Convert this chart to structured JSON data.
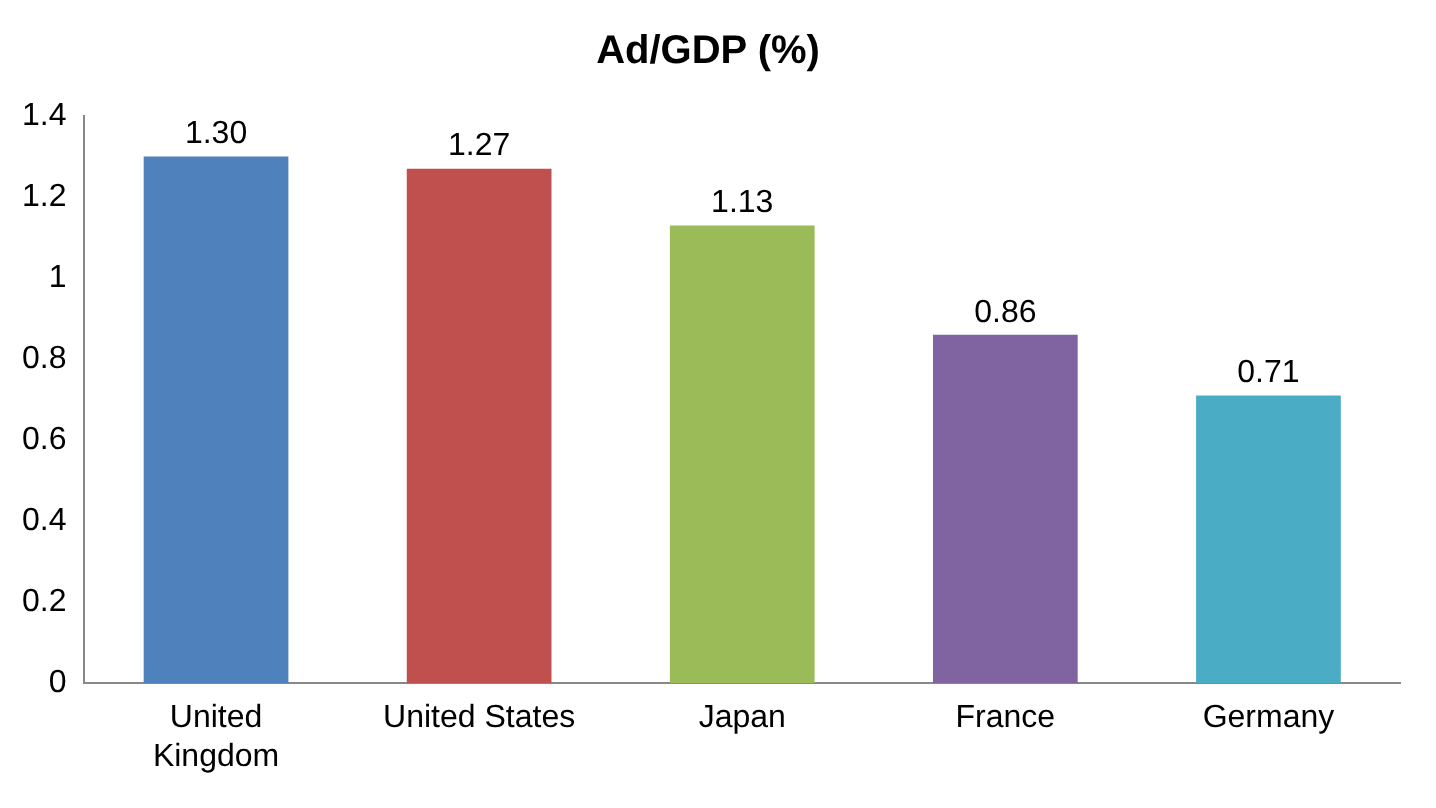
{
  "chart_data": {
    "type": "bar",
    "title": "Ad/GDP (%)",
    "categories": [
      "United Kingdom",
      "United States",
      "Japan",
      "France",
      "Germany"
    ],
    "values": [
      1.3,
      1.27,
      1.13,
      0.86,
      0.71
    ],
    "value_labels": [
      "1.30",
      "1.27",
      "1.13",
      "0.86",
      "0.71"
    ],
    "colors": [
      "#4f81bd",
      "#c0504d",
      "#9bbb59",
      "#8064a2",
      "#4bacc6"
    ],
    "ylim": [
      0,
      1.4
    ],
    "yticks": [
      0,
      0.2,
      0.4,
      0.6,
      0.8,
      1,
      1.2,
      1.4
    ],
    "grid": false,
    "legend": false
  }
}
